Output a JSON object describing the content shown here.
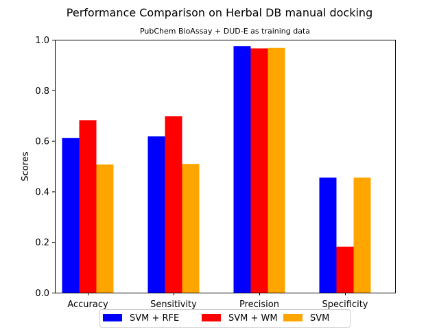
{
  "chart_data": {
    "type": "bar",
    "title": "Performance Comparison on Herbal DB manual docking",
    "subtitle": "PubChem BioAssay + DUD-E as training data",
    "xlabel": "",
    "ylabel": "Scores",
    "categories": [
      "Accuracy",
      "Sensitivity",
      "Precision",
      "Specificity"
    ],
    "series": [
      {
        "name": "SVM + RFE",
        "color": "#0000ff",
        "values": [
          0.612,
          0.618,
          0.975,
          0.455
        ]
      },
      {
        "name": "SVM + WM",
        "color": "#ff0000",
        "values": [
          0.682,
          0.698,
          0.966,
          0.182
        ]
      },
      {
        "name": "SVM",
        "color": "#ffa500",
        "values": [
          0.507,
          0.509,
          0.968,
          0.455
        ]
      }
    ],
    "ylim": [
      0,
      1.0
    ],
    "yticks": [
      "0.0",
      "0.2",
      "0.4",
      "0.6",
      "0.8",
      "1.0"
    ],
    "grid": false,
    "legend_position": "bottom-center"
  }
}
